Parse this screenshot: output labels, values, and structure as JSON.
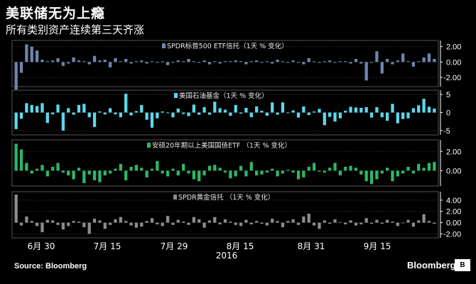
{
  "title": "美联储无为上瘾",
  "subtitle": "所有类别资产连续第三天齐涨",
  "source": "Source: Bloomberg",
  "brand": "Bloomberg",
  "brand_mark": "B",
  "chart_data": {
    "type": "bar",
    "x_ticks": [
      "6月 30",
      "7月 15",
      "7月 29",
      "8月 15",
      "8月 31",
      "9月 15"
    ],
    "x_year": "2016",
    "panels": [
      {
        "name": "SPDR标普500 ETF信托（1天 % 变化）",
        "color": "#6f86ab",
        "ylim": [
          -3.2,
          2.8
        ],
        "y_ticks": [
          {
            "v": 2,
            "label": "2.00"
          },
          {
            "v": 0,
            "label": "0.00"
          },
          {
            "v": -2,
            "label": "-2.00"
          }
        ],
        "values": [
          -3.6,
          -1.4,
          2.3,
          2.0,
          1.5,
          0.3,
          0.1,
          0.2,
          0.5,
          -0.5,
          -0.2,
          0.6,
          0.2,
          0.1,
          -0.3,
          0.8,
          0.2,
          0.3,
          -0.7,
          0.5,
          0.1,
          0.4,
          -0.2,
          0.1,
          0.2,
          -0.2,
          0.1,
          -0.1,
          0.1,
          -0.4,
          -0.1,
          0.2,
          0.1,
          0.4,
          0.1,
          -0.1,
          0.2,
          -0.3,
          0.1,
          -0.2,
          0.1,
          0.1,
          0.2,
          0.1,
          -0.3,
          0.1,
          0.2,
          -0.1,
          0.1,
          -0.2,
          0.3,
          0.1,
          -0.1,
          0.2,
          -0.1,
          -0.3,
          0.5,
          0.1,
          -0.1,
          0.1,
          0.2,
          -0.1,
          0.1,
          0.1,
          -0.2,
          0.4,
          -0.2,
          -2.4,
          -0.1,
          1.4,
          -1.5,
          0.4,
          -0.3,
          0.2,
          1.1,
          0.1,
          -0.6,
          0.1,
          0.6,
          1.1,
          0.4
        ]
      },
      {
        "name": "美国石油基金（1天 % 变化）",
        "color": "#5fd8ea",
        "ylim": [
          -6.2,
          6.2
        ],
        "y_ticks": [
          {
            "v": 5,
            "label": "5"
          },
          {
            "v": 0,
            "label": "0"
          },
          {
            "v": -5,
            "label": "-5"
          }
        ],
        "values": [
          -4.6,
          -1.7,
          2.6,
          2.1,
          1.8,
          2.6,
          -2.9,
          -0.5,
          2.2,
          -5.0,
          1.2,
          -0.6,
          2.1,
          2.4,
          -1.3,
          -4.0,
          0.3,
          -0.5,
          1.2,
          -0.5,
          -1.3,
          5.2,
          -0.8,
          0.4,
          2.1,
          -2.0,
          -4.2,
          -1.6,
          0.3,
          -0.2,
          -1.3,
          1.1,
          -0.4,
          -1.0,
          2.2,
          -0.6,
          1.5,
          -0.6,
          3.0,
          1.2,
          0.8,
          -0.9,
          2.1,
          -0.3,
          1.3,
          -1.3,
          1.7,
          0.5,
          -0.9,
          2.8,
          -0.6,
          2.8,
          -0.2,
          0.6,
          -1.4,
          1.7,
          -0.7,
          0.3,
          1.0,
          -3.5,
          -1.2,
          -2.5,
          -1.6,
          0.5,
          1.6,
          1.4,
          1.3,
          1.5,
          -1.4,
          1.5,
          -1.3,
          -2.3,
          2.4,
          -3.0,
          -1.8,
          -1.6,
          1.2,
          2.0,
          3.8,
          1.6,
          1.1
        ]
      },
      {
        "name": "安硕20年期以上美国国债ETF （1天 % 变化）",
        "color": "#2db768",
        "ylim": [
          -1.6,
          3.2
        ],
        "y_ticks": [
          {
            "v": 2,
            "label": "2.00"
          },
          {
            "v": 0,
            "label": "0.00"
          }
        ],
        "values": [
          2.8,
          2.2,
          0.8,
          -0.3,
          0.2,
          0.6,
          -0.6,
          0.4,
          0.8,
          -0.2,
          -0.5,
          -0.9,
          0.3,
          -1.3,
          -0.4,
          -1.0,
          -1.2,
          -0.5,
          -0.3,
          0.2,
          0.7,
          -1.0,
          0.4,
          0.6,
          0.3,
          -0.7,
          0.2,
          1.0,
          -0.3,
          -0.6,
          0.2,
          -0.5,
          0.7,
          -0.3,
          -0.9,
          -1.1,
          -0.5,
          0.5,
          0.6,
          0.3,
          -0.2,
          -0.8,
          -0.6,
          0.5,
          -0.6,
          0.9,
          -0.5,
          -0.4,
          -0.2,
          0.2,
          -0.6,
          -0.3,
          0.1,
          -0.2,
          -0.9,
          -0.7,
          0.4,
          0.8,
          -0.1,
          -0.2,
          0.3,
          0.8,
          -0.5,
          0.4,
          0.5,
          0.3,
          -0.4,
          -1.1,
          -1.4,
          -0.9,
          -0.3,
          0.3,
          -1.1,
          -0.6,
          -0.3,
          0.4,
          -0.3,
          0.7,
          0.3,
          0.8,
          0.9
        ]
      },
      {
        "name": "SPDR黄金信托 （1天 % 变化）",
        "color": "#8c8c8c",
        "ylim": [
          -2.7,
          5.5
        ],
        "y_ticks": [
          {
            "v": 4,
            "label": "4.00"
          },
          {
            "v": 2,
            "label": "2.00"
          },
          {
            "v": 0,
            "label": "0.00"
          },
          {
            "v": -2,
            "label": "-2.00"
          }
        ],
        "values": [
          5.0,
          -0.5,
          1.1,
          0.3,
          -0.6,
          -1.7,
          0.5,
          0.4,
          -0.4,
          -1.2,
          -0.6,
          0.3,
          0.2,
          -0.8,
          -2.0,
          0.7,
          0.4,
          -1.1,
          -0.4,
          0.6,
          1.0,
          0.3,
          -0.5,
          -0.9,
          -0.7,
          0.3,
          0.8,
          -0.3,
          -0.6,
          1.2,
          -0.4,
          0.5,
          0.2,
          -0.4,
          1.0,
          0.6,
          -0.9,
          0.4,
          1.0,
          -0.3,
          0.6,
          0.2,
          -0.4,
          -0.6,
          0.5,
          -0.3,
          0.3,
          -0.2,
          -0.5,
          0.7,
          0.3,
          -0.8,
          0.3,
          0.6,
          -0.4,
          1.1,
          1.6,
          -0.5,
          -1.1,
          0.4,
          -0.2,
          0.6,
          0.1,
          -0.3,
          0.4,
          -0.5,
          -0.3,
          0.8,
          -0.2,
          0.5,
          -0.2,
          0.5,
          0.2,
          -0.6,
          -0.1,
          0.5,
          -0.7,
          0.4,
          1.5,
          0.3,
          -0.2
        ]
      }
    ]
  }
}
